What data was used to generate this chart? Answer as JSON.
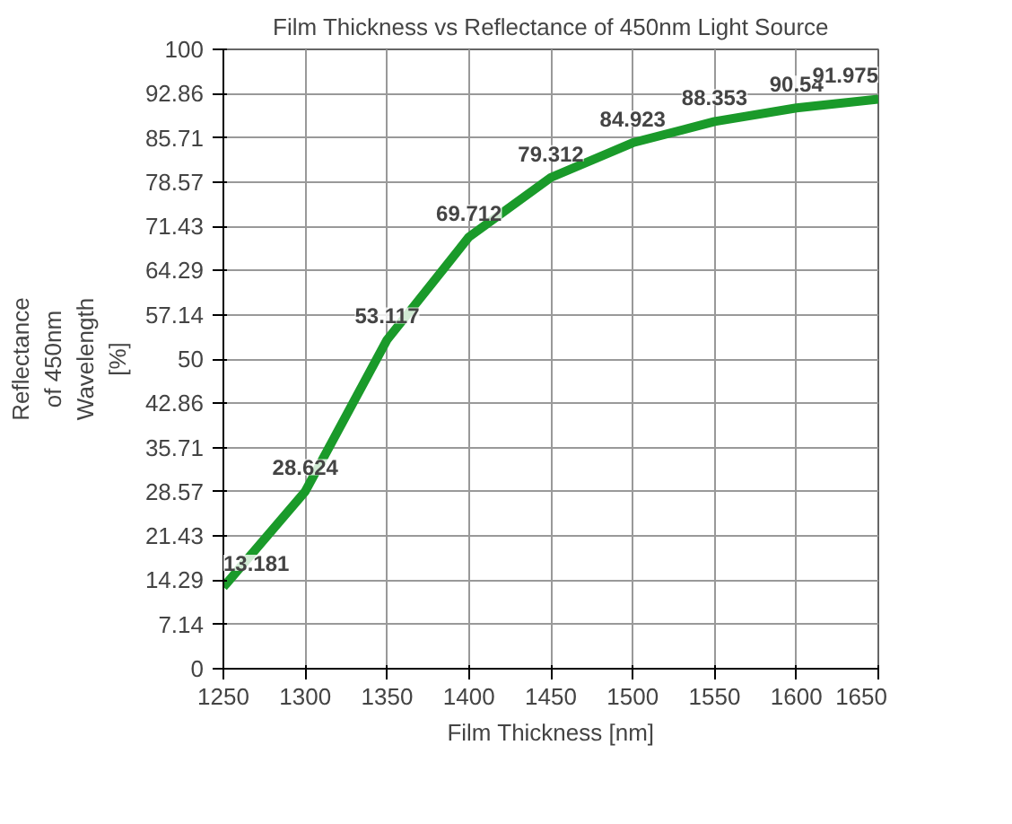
{
  "chart_data": {
    "type": "line",
    "title": "Film Thickness vs Reflectance of 450nm Light Source",
    "xlabel": "Film Thickness [nm]",
    "ylabel": "Reflectance\nof 450nm\nWavelength\n[%]",
    "x": [
      1250,
      1300,
      1350,
      1400,
      1450,
      1500,
      1550,
      1600,
      1650
    ],
    "series": [
      {
        "color": "#1a9a2a",
        "values": [
          13.181,
          28.624,
          53.117,
          69.712,
          79.312,
          84.923,
          88.353,
          90.54,
          91.975
        ]
      }
    ],
    "xlim": [
      1250,
      1650
    ],
    "xticks": [
      1250,
      1300,
      1350,
      1400,
      1450,
      1500,
      1550,
      1600,
      1650
    ],
    "ylim": [
      0,
      100
    ],
    "yticks": [
      0,
      7.14,
      14.29,
      21.43,
      28.57,
      35.71,
      42.86,
      50,
      57.14,
      64.29,
      71.43,
      78.57,
      85.71,
      92.86,
      100
    ],
    "grid": true,
    "data_labels": true,
    "line_style": "solid",
    "marker": "none"
  }
}
